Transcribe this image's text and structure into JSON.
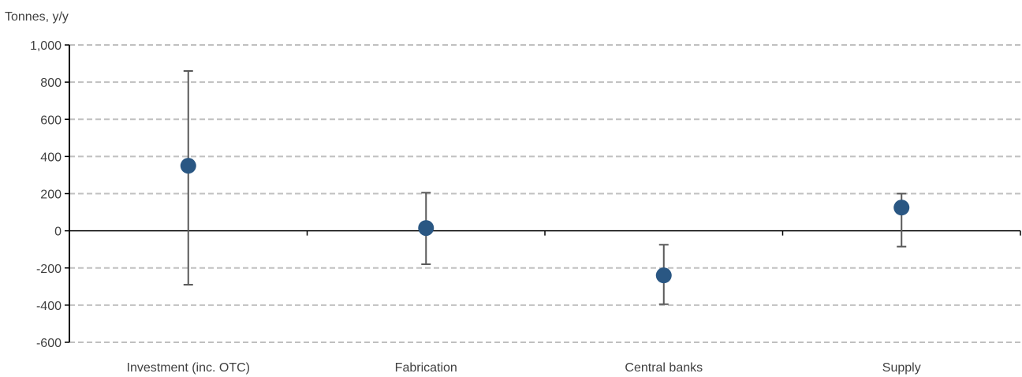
{
  "chart_data": {
    "type": "scatter",
    "unit_label": "Tonnes, y/y",
    "categories": [
      "Investment (inc. OTC)",
      "Fabrication",
      "Central banks",
      "Supply"
    ],
    "values": [
      350,
      15,
      -240,
      125
    ],
    "error_low": [
      -290,
      -180,
      -395,
      -85
    ],
    "error_high": [
      860,
      205,
      -75,
      200
    ],
    "ylim": [
      -600,
      1000
    ],
    "yticks": [
      -600,
      -400,
      -200,
      0,
      200,
      400,
      600,
      800,
      1000
    ],
    "ytick_labels": [
      "-600",
      "-400",
      "-200",
      "0",
      "200",
      "400",
      "600",
      "800",
      "1,000"
    ],
    "grid": true,
    "colors": {
      "marker": "#2a5783",
      "errorbar": "#595959",
      "grid": "#c0c0c0",
      "axis": "#000000"
    }
  }
}
